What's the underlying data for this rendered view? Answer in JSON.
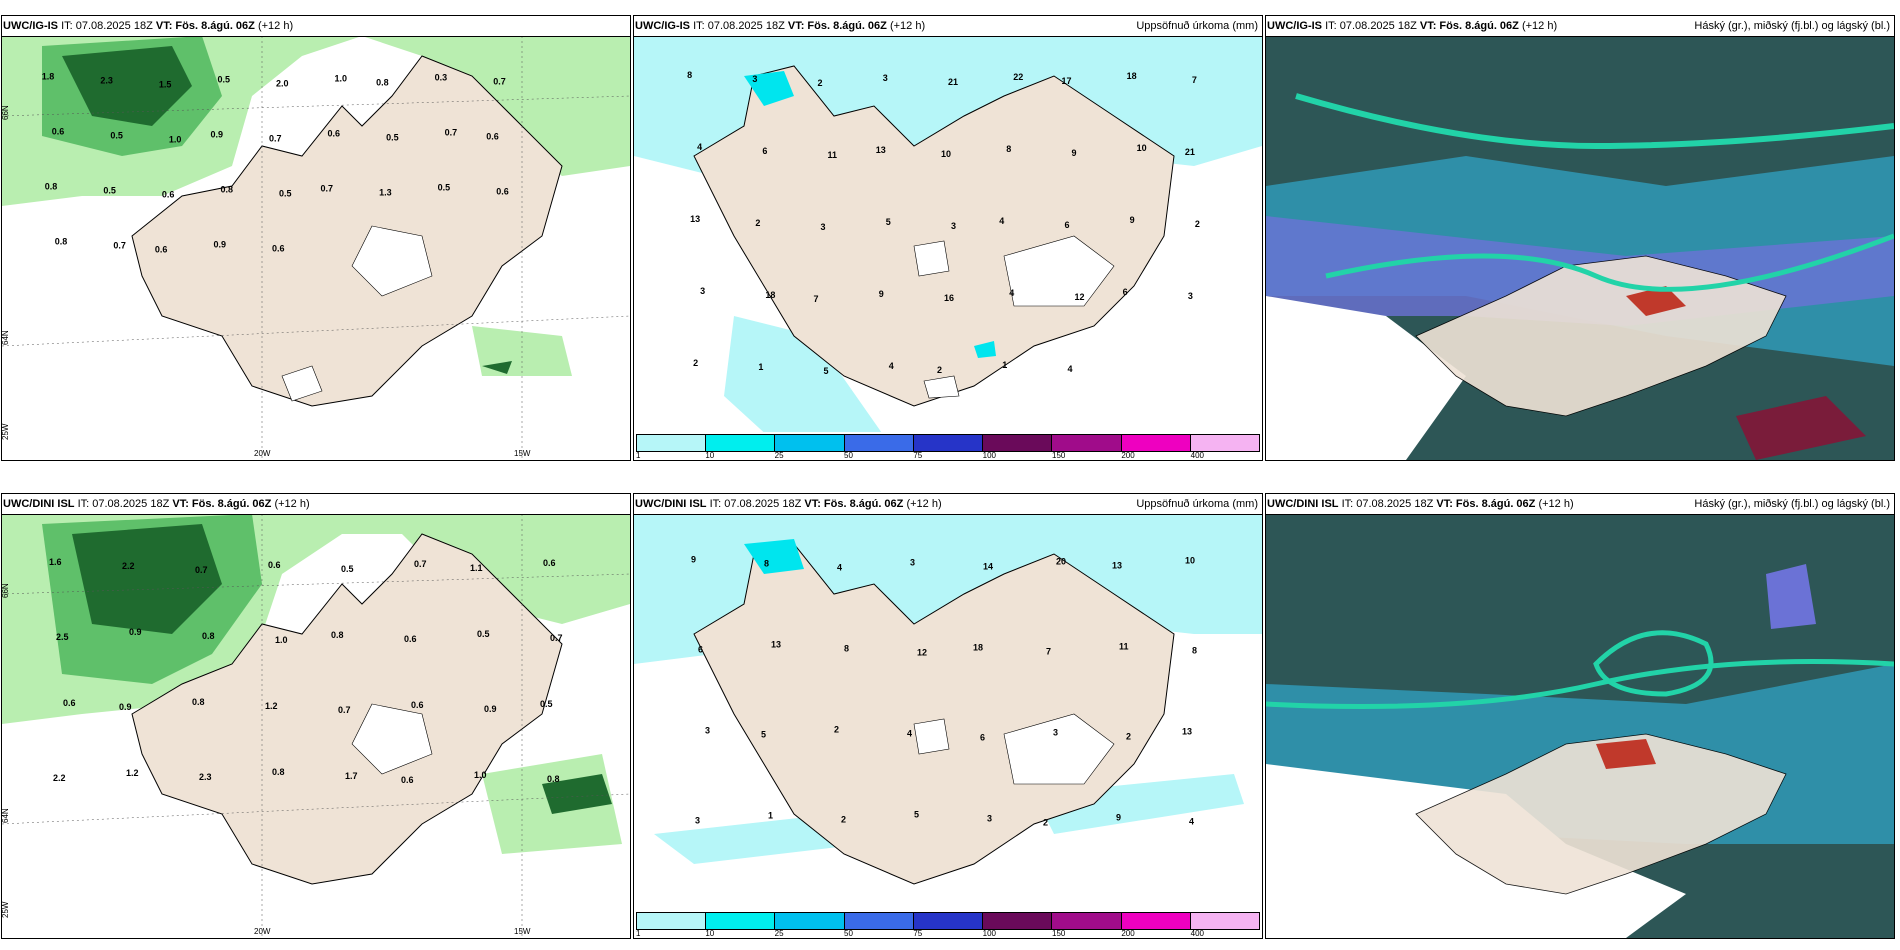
{
  "panels": [
    {
      "id": "ig-wind",
      "model": "UWC/IG-IS",
      "it": "IT: 07.08.2025 18Z",
      "vt_label": "VT:",
      "vt": "Fös. 8.ágú. 06Z",
      "lead": "(+12 h)",
      "right_title": "",
      "values": [
        "1.8",
        "2.3",
        "1.5",
        "0.5",
        "2.0",
        "1.0",
        "0.8",
        "0.3",
        "0.7",
        "0.6",
        "0.5",
        "1.0",
        "0.9",
        "0.7",
        "0.6",
        "0.5",
        "0.7",
        "0.6",
        "0.8",
        "0.5",
        "0.6",
        "0.8",
        "0.5",
        "0.7",
        "1.3",
        "0.5",
        "0.6",
        "0.8",
        "0.7",
        "0.6",
        "0.9",
        "0.6"
      ],
      "axis_labels": {
        "lat_top": "66N",
        "lat_mid": "64N",
        "lat_bot": "25W",
        "lon_a": "20W",
        "lon_b": "15W"
      }
    },
    {
      "id": "ig-precip",
      "model": "UWC/IG-IS",
      "it": "IT: 07.08.2025 18Z",
      "vt_label": "VT:",
      "vt": "Fös. 8.ágú. 06Z",
      "lead": "(+12 h)",
      "right_title": "Uppsöfnuð úrkoma (mm)",
      "values": [
        "8",
        "3",
        "2",
        "3",
        "21",
        "22",
        "17",
        "18",
        "7",
        "4",
        "6",
        "11",
        "13",
        "10",
        "8",
        "9",
        "10",
        "21",
        "13",
        "2",
        "3",
        "5",
        "3",
        "4",
        "6",
        "9",
        "2",
        "3",
        "18",
        "7",
        "9",
        "16",
        "4",
        "12",
        "6",
        "3",
        "2",
        "1",
        "5",
        "4",
        "2",
        "1",
        "4"
      ],
      "colorbar": [
        "1",
        "10",
        "25",
        "50",
        "75",
        "100",
        "150",
        "200",
        "400"
      ]
    },
    {
      "id": "ig-cloud",
      "model": "UWC/IG-IS",
      "it": "IT: 07.08.2025 18Z",
      "vt_label": "VT:",
      "vt": "Fös. 8.ágú. 06Z",
      "lead": "(+12 h)",
      "right_title": "Háský (gr.), miðský (fj.bl.) og lágský (bl.)"
    },
    {
      "id": "dini-wind",
      "model": "UWC/DINI ISL",
      "it": "IT: 07.08.2025 18Z",
      "vt_label": "VT:",
      "vt": "Fös. 8.ágú. 06Z",
      "lead": "(+12 h)",
      "right_title": "",
      "values": [
        "1.6",
        "2.2",
        "0.7",
        "0.6",
        "0.5",
        "0.7",
        "1.1",
        "0.6",
        "2.5",
        "0.9",
        "0.8",
        "1.0",
        "0.8",
        "0.6",
        "0.5",
        "0.7",
        "0.6",
        "0.9",
        "0.8",
        "1.2",
        "0.7",
        "0.6",
        "0.9",
        "0.5",
        "2.2",
        "1.2",
        "2.3",
        "0.8",
        "1.7",
        "0.6",
        "1.0",
        "0.8"
      ],
      "axis_labels": {
        "lat_top": "66N",
        "lat_mid": "64N",
        "lat_bot": "25W",
        "lon_a": "20W",
        "lon_b": "15W"
      }
    },
    {
      "id": "dini-precip",
      "model": "UWC/DINI ISL",
      "it": "IT: 07.08.2025 18Z",
      "vt_label": "VT:",
      "vt": "Fös. 8.ágú. 06Z",
      "lead": "(+12 h)",
      "right_title": "Uppsöfnuð úrkoma (mm)",
      "values": [
        "9",
        "8",
        "4",
        "3",
        "14",
        "20",
        "13",
        "10",
        "6",
        "13",
        "8",
        "12",
        "18",
        "7",
        "11",
        "8",
        "3",
        "5",
        "2",
        "4",
        "6",
        "3",
        "2",
        "13",
        "3",
        "1",
        "2",
        "5",
        "3",
        "2",
        "9",
        "4"
      ],
      "colorbar": [
        "1",
        "10",
        "25",
        "50",
        "75",
        "100",
        "150",
        "200",
        "400"
      ]
    },
    {
      "id": "dini-cloud",
      "model": "UWC/DINI ISL",
      "it": "IT: 07.08.2025 18Z",
      "vt_label": "VT:",
      "vt": "Fös. 8.ágú. 06Z",
      "lead": "(+12 h)",
      "right_title": "Háský (gr.), miðský (fj.bl.) og lágský (bl.)"
    }
  ],
  "colors": {
    "land": "#efe3d6",
    "ice": "#ffffff",
    "sea": "#ffffff",
    "wind_light": "#b9eeb0",
    "wind_mid": "#5fc06a",
    "wind_dark": "#1f6b2f",
    "precip_light": "#b6f6f8",
    "precip_mid": "#00e5ee",
    "cloud_high": "#2d5656",
    "cloud_mid": "#2f8fa8",
    "cloud_low": "#6b72d6",
    "colorbar": [
      "#b6f6f8",
      "#00eeee",
      "#00c0ee",
      "#3a6be8",
      "#2634c8",
      "#6a0a5a",
      "#a00c8a",
      "#ee00c0",
      "#f5b3f2"
    ]
  }
}
